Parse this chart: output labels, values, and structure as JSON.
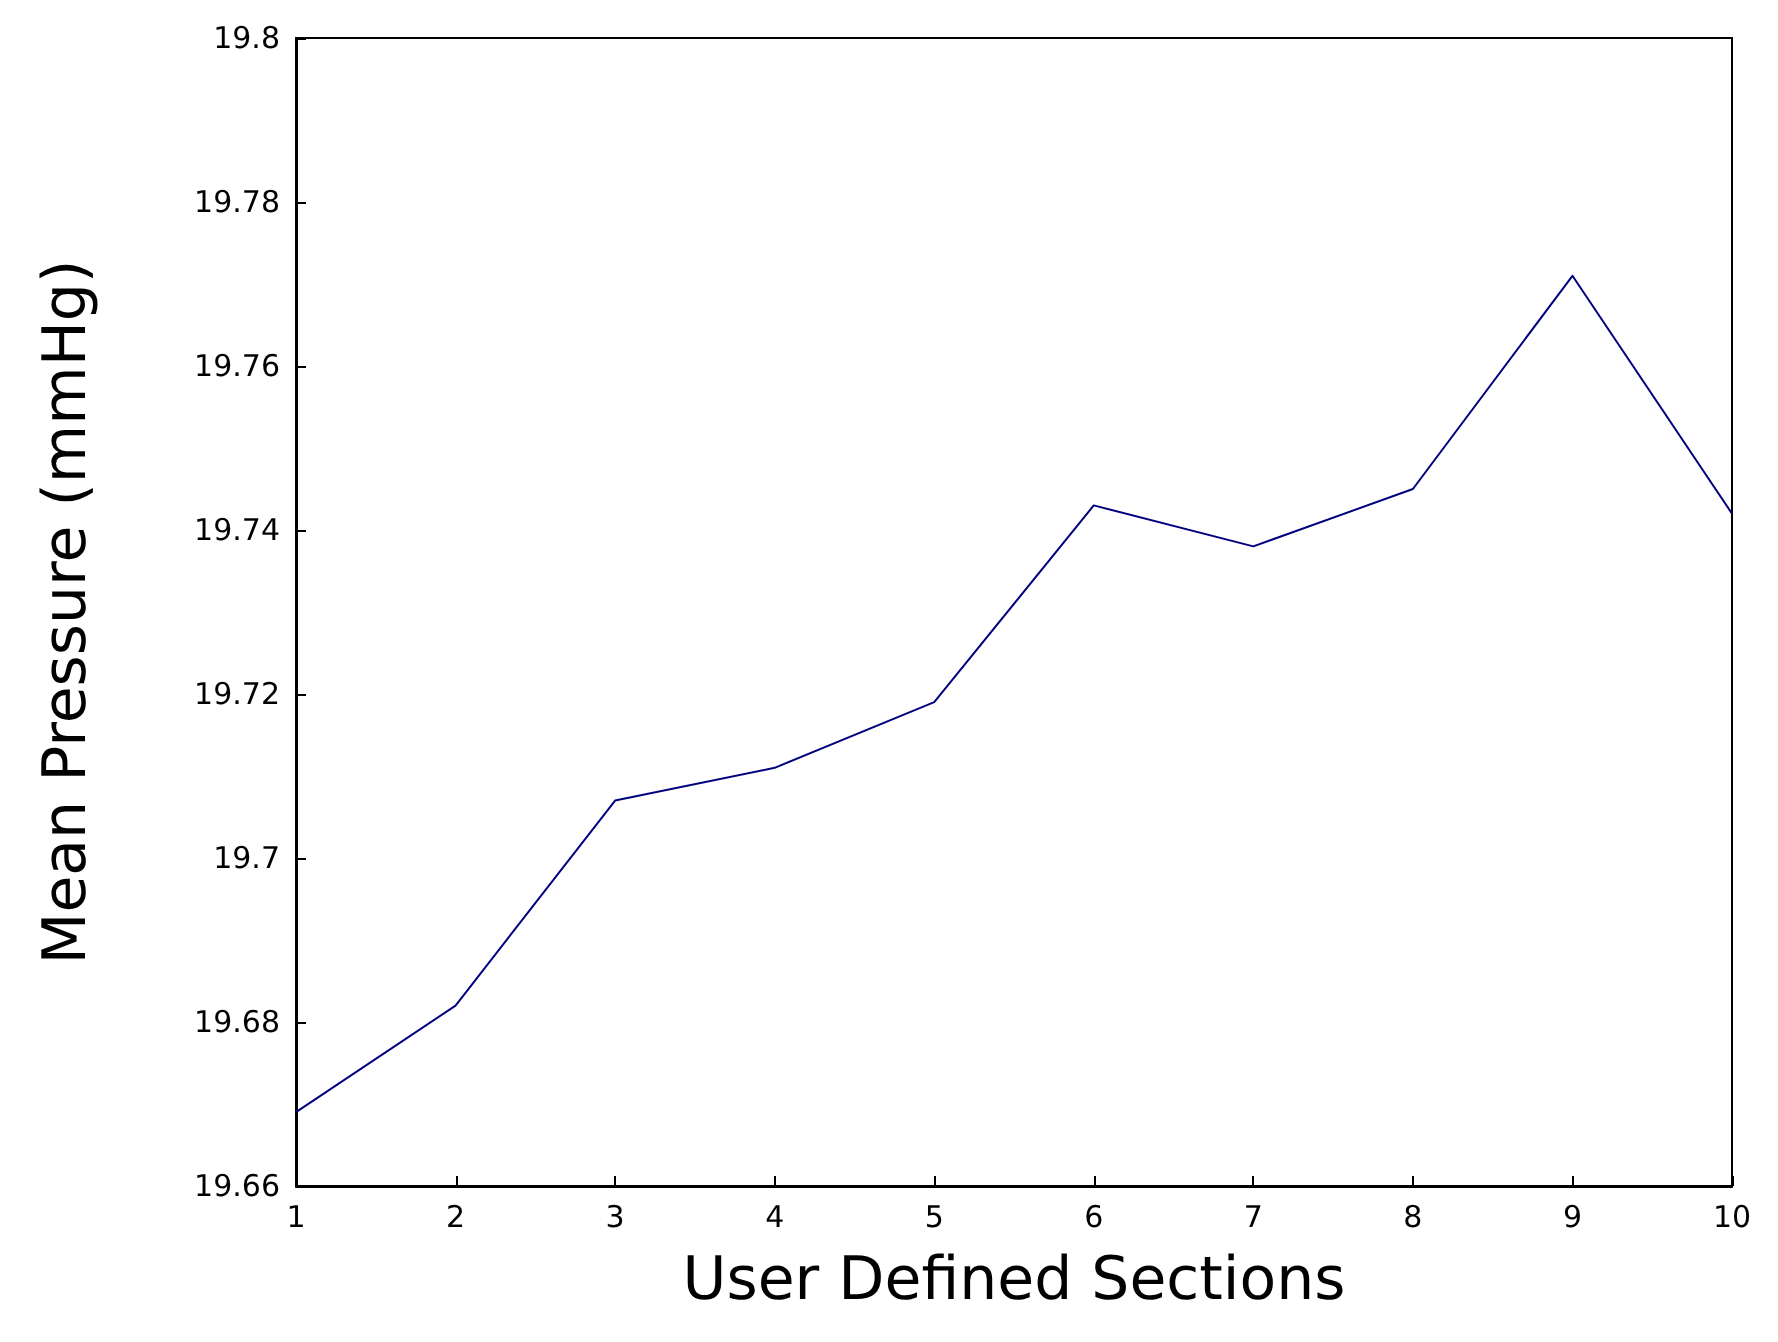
{
  "chart_data": {
    "type": "line",
    "xlabel": "User Defined Sections",
    "ylabel": "Mean Pressure (mmHg)",
    "x": [
      1,
      2,
      3,
      4,
      5,
      6,
      7,
      8,
      9,
      10
    ],
    "series": [
      {
        "color": "#00007f",
        "values": [
          19.669,
          19.682,
          19.707,
          19.711,
          19.719,
          19.743,
          19.738,
          19.745,
          19.771,
          19.742
        ]
      }
    ],
    "xlim": [
      1,
      10
    ],
    "xticks": [
      1,
      2,
      3,
      4,
      5,
      6,
      7,
      8,
      9,
      10
    ],
    "ylim": [
      19.66,
      19.8
    ],
    "yticks": [
      19.66,
      19.68,
      19.7,
      19.72,
      19.74,
      19.76,
      19.78,
      19.8
    ],
    "grid": false,
    "marker": "none",
    "line_style": "solid"
  }
}
